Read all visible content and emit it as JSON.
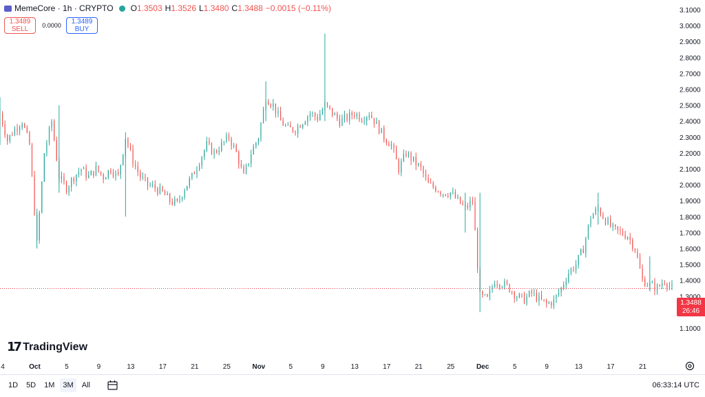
{
  "legend": {
    "symbol": "MemeCore · 1h · CRYPTO",
    "o_label": "O",
    "o": "1.3503",
    "h_label": "H",
    "h": "1.3526",
    "l_label": "L",
    "l": "1.3480",
    "c_label": "C",
    "c": "1.3488",
    "change": "−0.0015 (−0.11%)"
  },
  "trade": {
    "sell_price": "1.3489",
    "sell_label": "SELL",
    "spread": "0.0000",
    "buy_price": "1.3489",
    "buy_label": "BUY"
  },
  "price_axis": {
    "ticks": [
      "3.1000",
      "3.0000",
      "2.9000",
      "2.8000",
      "2.7000",
      "2.6000",
      "2.5000",
      "2.4000",
      "2.3000",
      "2.2000",
      "2.1000",
      "2.0000",
      "1.9000",
      "1.8000",
      "1.7000",
      "1.6000",
      "1.5000",
      "1.4000",
      "1.3000",
      "1.2000",
      "1.1000"
    ]
  },
  "time_axis": {
    "labels": [
      {
        "text": "4",
        "bold": false
      },
      {
        "text": "Oct",
        "bold": true
      },
      {
        "text": "5",
        "bold": false
      },
      {
        "text": "9",
        "bold": false
      },
      {
        "text": "13",
        "bold": false
      },
      {
        "text": "17",
        "bold": false
      },
      {
        "text": "21",
        "bold": false
      },
      {
        "text": "25",
        "bold": false
      },
      {
        "text": "Nov",
        "bold": true
      },
      {
        "text": "5",
        "bold": false
      },
      {
        "text": "9",
        "bold": false
      },
      {
        "text": "13",
        "bold": false
      },
      {
        "text": "17",
        "bold": false
      },
      {
        "text": "21",
        "bold": false
      },
      {
        "text": "25",
        "bold": false
      },
      {
        "text": "Dec",
        "bold": true
      },
      {
        "text": "5",
        "bold": false
      },
      {
        "text": "9",
        "bold": false
      },
      {
        "text": "13",
        "bold": false
      },
      {
        "text": "17",
        "bold": false
      },
      {
        "text": "21",
        "bold": false
      }
    ]
  },
  "last_price": {
    "price": "1.3488",
    "countdown": "26:46"
  },
  "brand": {
    "name": "TradingView"
  },
  "ranges": [
    "1D",
    "5D",
    "1M",
    "3M",
    "All"
  ],
  "active_range": "3M",
  "clock": "06:33:14 UTC",
  "colors": {
    "up": "#26a69a",
    "down": "#ef5350",
    "last_price": "#f23645",
    "accent": "#2962ff"
  },
  "chart_data": {
    "type": "candlestick",
    "title": "MemeCore · 1h · CRYPTO",
    "ylim": [
      1.1,
      3.1
    ],
    "x_range": [
      "2024-09-24",
      "2024-12-24"
    ],
    "last_price": 1.3488,
    "grid": false,
    "path": [
      [
        "2024-09-24",
        2.45
      ],
      [
        "2024-09-25",
        2.28
      ],
      [
        "2024-09-26",
        2.35
      ],
      [
        "2024-09-27",
        2.4
      ],
      [
        "2024-09-28",
        2.25
      ],
      [
        "2024-09-29",
        1.63
      ],
      [
        "2024-09-30",
        2.2
      ],
      [
        "2024-10-01",
        2.4
      ],
      [
        "2024-10-02",
        2.05
      ],
      [
        "2024-10-03",
        1.98
      ],
      [
        "2024-10-04",
        2.05
      ],
      [
        "2024-10-05",
        2.1
      ],
      [
        "2024-10-06",
        2.05
      ],
      [
        "2024-10-07",
        2.1
      ],
      [
        "2024-10-08",
        2.05
      ],
      [
        "2024-10-09",
        2.1
      ],
      [
        "2024-10-10",
        2.05
      ],
      [
        "2024-10-11",
        2.3
      ],
      [
        "2024-10-12",
        2.15
      ],
      [
        "2024-10-13",
        2.05
      ],
      [
        "2024-10-14",
        2.0
      ],
      [
        "2024-10-15",
        1.98
      ],
      [
        "2024-10-16",
        1.95
      ],
      [
        "2024-10-17",
        1.9
      ],
      [
        "2024-10-18",
        1.88
      ],
      [
        "2024-10-19",
        1.98
      ],
      [
        "2024-10-20",
        2.05
      ],
      [
        "2024-10-21",
        2.15
      ],
      [
        "2024-10-22",
        2.25
      ],
      [
        "2024-10-23",
        2.2
      ],
      [
        "2024-10-24",
        2.25
      ],
      [
        "2024-10-25",
        2.3
      ],
      [
        "2024-10-26",
        2.2
      ],
      [
        "2024-10-27",
        2.05
      ],
      [
        "2024-10-28",
        2.2
      ],
      [
        "2024-10-29",
        2.3
      ],
      [
        "2024-10-30",
        2.55
      ],
      [
        "2024-10-31",
        2.5
      ],
      [
        "2024-11-01",
        2.4
      ],
      [
        "2024-11-02",
        2.35
      ],
      [
        "2024-11-03",
        2.35
      ],
      [
        "2024-11-04",
        2.4
      ],
      [
        "2024-11-05",
        2.45
      ],
      [
        "2024-11-06",
        2.42
      ],
      [
        "2024-11-07",
        2.5
      ],
      [
        "2024-11-08",
        2.45
      ],
      [
        "2024-11-09",
        2.4
      ],
      [
        "2024-11-10",
        2.42
      ],
      [
        "2024-11-11",
        2.45
      ],
      [
        "2024-11-12",
        2.42
      ],
      [
        "2024-11-13",
        2.45
      ],
      [
        "2024-11-14",
        2.38
      ],
      [
        "2024-11-15",
        2.3
      ],
      [
        "2024-11-16",
        2.25
      ],
      [
        "2024-11-17",
        2.1
      ],
      [
        "2024-11-18",
        2.2
      ],
      [
        "2024-11-19",
        2.15
      ],
      [
        "2024-11-20",
        2.1
      ],
      [
        "2024-11-21",
        2.0
      ],
      [
        "2024-11-22",
        1.98
      ],
      [
        "2024-11-23",
        1.95
      ],
      [
        "2024-11-24",
        1.95
      ],
      [
        "2024-11-25",
        1.9
      ],
      [
        "2024-11-26",
        1.85
      ],
      [
        "2024-11-27",
        1.9
      ],
      [
        "2024-11-28",
        1.3
      ],
      [
        "2024-11-29",
        1.28
      ],
      [
        "2024-11-30",
        1.4
      ],
      [
        "2024-12-01",
        1.38
      ],
      [
        "2024-12-02",
        1.35
      ],
      [
        "2024-12-03",
        1.3
      ],
      [
        "2024-12-04",
        1.28
      ],
      [
        "2024-12-05",
        1.32
      ],
      [
        "2024-12-06",
        1.28
      ],
      [
        "2024-12-07",
        1.25
      ],
      [
        "2024-12-08",
        1.27
      ],
      [
        "2024-12-09",
        1.35
      ],
      [
        "2024-12-10",
        1.45
      ],
      [
        "2024-12-11",
        1.5
      ],
      [
        "2024-12-12",
        1.6
      ],
      [
        "2024-12-13",
        1.8
      ],
      [
        "2024-12-14",
        1.85
      ],
      [
        "2024-12-15",
        1.78
      ],
      [
        "2024-12-16",
        1.72
      ],
      [
        "2024-12-17",
        1.7
      ],
      [
        "2024-12-18",
        1.68
      ],
      [
        "2024-12-19",
        1.6
      ],
      [
        "2024-12-20",
        1.4
      ],
      [
        "2024-12-21",
        1.37
      ],
      [
        "2024-12-22",
        1.35
      ],
      [
        "2024-12-23",
        1.4
      ],
      [
        "2024-12-24",
        1.35
      ]
    ],
    "spikes": [
      {
        "date": "2024-09-24",
        "high": 2.55,
        "low": 2.25
      },
      {
        "date": "2024-09-29",
        "high": 1.85,
        "low": 1.6
      },
      {
        "date": "2024-10-02",
        "high": 2.5,
        "low": 1.95
      },
      {
        "date": "2024-10-11",
        "high": 2.33,
        "low": 1.8
      },
      {
        "date": "2024-10-30",
        "high": 2.65,
        "low": 2.4
      },
      {
        "date": "2024-11-07",
        "high": 2.95,
        "low": 2.4
      },
      {
        "date": "2024-11-26",
        "high": 1.95,
        "low": 1.7
      },
      {
        "date": "2024-11-28",
        "high": 1.95,
        "low": 1.2
      },
      {
        "date": "2024-12-14",
        "high": 1.95,
        "low": 1.75
      },
      {
        "date": "2024-12-21",
        "high": 1.55,
        "low": 1.33
      }
    ]
  }
}
